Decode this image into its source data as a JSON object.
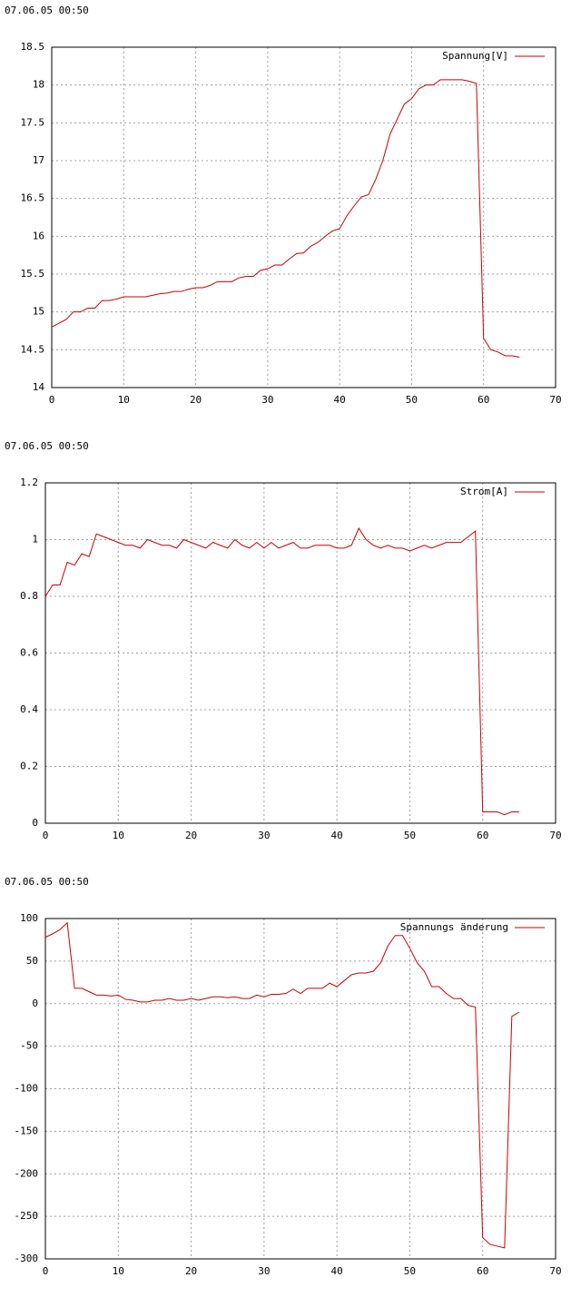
{
  "chart_data": [
    {
      "type": "line",
      "title": "07.06.05 00:50",
      "x": [
        0,
        1,
        2,
        3,
        4,
        5,
        6,
        7,
        8,
        9,
        10,
        11,
        12,
        13,
        14,
        15,
        16,
        17,
        18,
        19,
        20,
        21,
        22,
        23,
        24,
        25,
        26,
        27,
        28,
        29,
        30,
        31,
        32,
        33,
        34,
        35,
        36,
        37,
        38,
        39,
        40,
        41,
        42,
        43,
        44,
        45,
        46,
        47,
        48,
        49,
        50,
        51,
        52,
        53,
        54,
        55,
        56,
        57,
        58,
        59,
        60,
        61,
        62,
        63,
        64,
        65
      ],
      "series": [
        {
          "name": "Spannung[V]",
          "color": "#cc0000",
          "values": [
            14.8,
            14.85,
            14.9,
            15.0,
            15.0,
            15.05,
            15.05,
            15.15,
            15.15,
            15.17,
            15.2,
            15.2,
            15.2,
            15.2,
            15.22,
            15.24,
            15.25,
            15.27,
            15.27,
            15.3,
            15.32,
            15.32,
            15.35,
            15.4,
            15.4,
            15.4,
            15.45,
            15.47,
            15.47,
            15.55,
            15.57,
            15.62,
            15.62,
            15.7,
            15.77,
            15.78,
            15.87,
            15.92,
            16.0,
            16.07,
            16.1,
            16.27,
            16.4,
            16.52,
            16.55,
            16.75,
            17.0,
            17.35,
            17.55,
            17.75,
            17.82,
            17.95,
            18.0,
            18.0,
            18.07,
            18.07,
            18.07,
            18.07,
            18.05,
            18.02,
            14.65,
            14.5,
            14.47,
            14.42,
            14.42,
            14.4
          ]
        }
      ],
      "xlim": [
        0,
        70
      ],
      "xticks": [
        0,
        10,
        20,
        30,
        40,
        50,
        60,
        70
      ],
      "ylim": [
        14,
        18.5
      ],
      "yticks": [
        14,
        14.5,
        15,
        15.5,
        16,
        16.5,
        17,
        17.5,
        18,
        18.5
      ],
      "grid": true,
      "legend": "top right"
    },
    {
      "type": "line",
      "title": "07.06.05 00:50",
      "x": [
        0,
        1,
        2,
        3,
        4,
        5,
        6,
        7,
        8,
        9,
        10,
        11,
        12,
        13,
        14,
        15,
        16,
        17,
        18,
        19,
        20,
        21,
        22,
        23,
        24,
        25,
        26,
        27,
        28,
        29,
        30,
        31,
        32,
        33,
        34,
        35,
        36,
        37,
        38,
        39,
        40,
        41,
        42,
        43,
        44,
        45,
        46,
        47,
        48,
        49,
        50,
        51,
        52,
        53,
        54,
        55,
        56,
        57,
        58,
        59,
        60,
        61,
        62,
        63,
        64,
        65
      ],
      "series": [
        {
          "name": "Strom[A]",
          "color": "#cc0000",
          "values": [
            0.8,
            0.84,
            0.84,
            0.92,
            0.91,
            0.95,
            0.94,
            1.02,
            1.01,
            1.0,
            0.99,
            0.98,
            0.98,
            0.97,
            1.0,
            0.99,
            0.98,
            0.98,
            0.97,
            1.0,
            0.99,
            0.98,
            0.97,
            0.99,
            0.98,
            0.97,
            1.0,
            0.98,
            0.97,
            0.99,
            0.97,
            0.99,
            0.97,
            0.98,
            0.99,
            0.97,
            0.97,
            0.98,
            0.98,
            0.98,
            0.97,
            0.97,
            0.98,
            1.04,
            1.0,
            0.98,
            0.97,
            0.98,
            0.97,
            0.97,
            0.96,
            0.97,
            0.98,
            0.97,
            0.98,
            0.99,
            0.99,
            0.99,
            1.01,
            1.03,
            0.04,
            0.04,
            0.04,
            0.03,
            0.04,
            0.04
          ]
        }
      ],
      "xlim": [
        0,
        70
      ],
      "xticks": [
        0,
        10,
        20,
        30,
        40,
        50,
        60,
        70
      ],
      "ylim": [
        0,
        1.2
      ],
      "yticks": [
        0,
        0.2,
        0.4,
        0.6,
        0.8,
        1,
        1.2
      ],
      "grid": true,
      "legend": "top right"
    },
    {
      "type": "line",
      "title": "07.06.05 00:50",
      "x": [
        0,
        1,
        2,
        3,
        4,
        5,
        6,
        7,
        8,
        9,
        10,
        11,
        12,
        13,
        14,
        15,
        16,
        17,
        18,
        19,
        20,
        21,
        22,
        23,
        24,
        25,
        26,
        27,
        28,
        29,
        30,
        31,
        32,
        33,
        34,
        35,
        36,
        37,
        38,
        39,
        40,
        41,
        42,
        43,
        44,
        45,
        46,
        47,
        48,
        49,
        50,
        51,
        52,
        53,
        54,
        55,
        56,
        57,
        58,
        59,
        60,
        61,
        62,
        63,
        64,
        65
      ],
      "series": [
        {
          "name": "Spannungs änderung",
          "color": "#cc0000",
          "values": [
            78,
            82,
            87,
            95,
            18,
            18,
            14,
            10,
            10,
            9,
            10,
            5,
            4,
            2,
            2,
            4,
            4,
            6,
            4,
            4,
            6,
            4,
            6,
            8,
            8,
            7,
            8,
            6,
            6,
            10,
            8,
            11,
            11,
            12,
            17,
            12,
            18,
            18,
            18,
            24,
            20,
            27,
            34,
            36,
            36,
            38,
            48,
            68,
            80,
            80,
            65,
            48,
            38,
            20,
            20,
            12,
            6,
            6,
            -2,
            -4,
            -275,
            -283,
            -285,
            -287,
            -15,
            -10
          ]
        }
      ],
      "xlim": [
        0,
        70
      ],
      "xticks": [
        0,
        10,
        20,
        30,
        40,
        50,
        60,
        70
      ],
      "ylim": [
        -300,
        100
      ],
      "yticks": [
        -300,
        -250,
        -200,
        -150,
        -100,
        -50,
        0,
        50,
        100
      ],
      "grid": true,
      "legend": "top right"
    }
  ]
}
